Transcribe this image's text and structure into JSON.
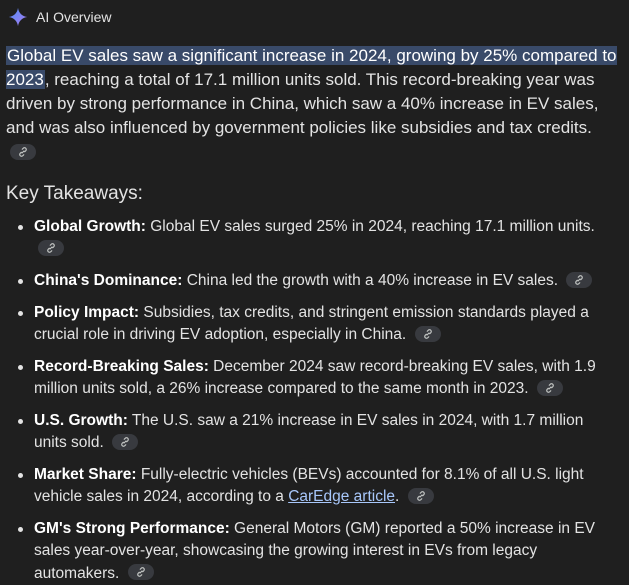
{
  "header": {
    "title": "AI Overview",
    "icon": "sparkle-icon"
  },
  "summary": {
    "highlight": "Global EV sales saw a significant increase in 2024, growing by 25% compared to 2023",
    "rest": ", reaching a total of 17.1 million units sold. This record-breaking year was driven by strong performance in China, which saw a 40% increase in EV sales, and was also influenced by government policies like subsidies and tax credits."
  },
  "key_takeaways": {
    "heading": "Key Takeaways:",
    "items": [
      {
        "title": "Global Growth:",
        "text": " Global EV sales surged 25% in 2024, reaching 17.1 million units."
      },
      {
        "title": "China's Dominance:",
        "text": " China led the growth with a 40% increase in EV sales."
      },
      {
        "title": "Policy Impact:",
        "text": " Subsidies, tax credits, and stringent emission standards played a crucial role in driving EV adoption, especially in China."
      },
      {
        "title": "Record-Breaking Sales:",
        "text": " December 2024 saw record-breaking EV sales, with 1.9 million units sold, a 26% increase compared to the same month in 2023."
      },
      {
        "title": "U.S. Growth:",
        "text": " The U.S. saw a 21% increase in EV sales in 2024, with 1.7 million units sold."
      },
      {
        "title": "Market Share:",
        "text": " Fully-electric vehicles (BEVs) accounted for 8.1% of all U.S. light vehicle sales in 2024, according to a ",
        "link": "CarEdge article",
        "after": "."
      },
      {
        "title": "GM's Strong Performance:",
        "text": " General Motors (GM) reported a 50% increase in EV sales year-over-year, showcasing the growing interest in EVs from legacy automakers."
      }
    ]
  },
  "colors": {
    "background": "#1f1f1f",
    "highlight": "#394a69",
    "link": "#a8c7fa",
    "chip": "#383a3f"
  }
}
